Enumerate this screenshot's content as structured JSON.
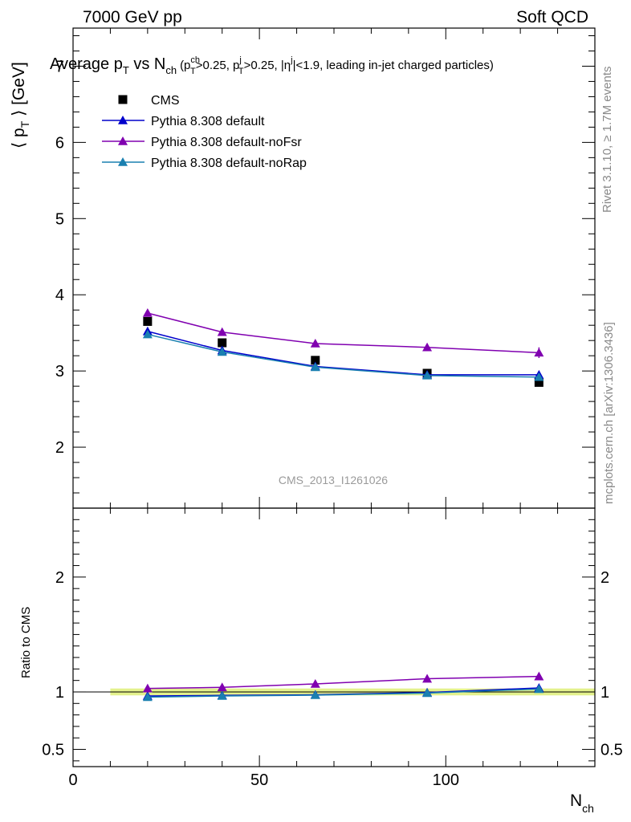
{
  "header": {
    "left": "7000 GeV pp",
    "right": "Soft QCD"
  },
  "title": {
    "main_a": "Average p",
    "main_sub": "T",
    "main_b": " vs N",
    "main_sub2": "ch",
    "cut": "(p",
    "cut_sup": "ch",
    "cut_sub": "T",
    "cut_b": ">0.25, p",
    "cut_sup2": "j",
    "cut_sub2": "T",
    "cut_c": ">0.25, |η",
    "cut_sup3": "j",
    "cut_d": "|<1.9, leading in-jet charged particles)"
  },
  "side_labels": {
    "rivet": "Rivet 3.1.10, ≥ 1.7M events",
    "mcplots": "mcplots.cern.ch [arXiv:1306.3436]"
  },
  "watermark": "CMS_2013_I1261026",
  "axes": {
    "y_main_label_a": "⟨ p",
    "y_main_label_sub": "T",
    "y_main_label_b": " ⟩ [GeV]",
    "y_ratio_label": "Ratio to CMS",
    "x_label": "N",
    "x_label_sub": "ch"
  },
  "legend": [
    {
      "name": "CMS",
      "color": "#000000",
      "marker": "square"
    },
    {
      "name": "Pythia 8.308 default",
      "color": "#0000cc",
      "marker": "triangle"
    },
    {
      "name": "Pythia 8.308 default-noFsr",
      "color": "#8000b0",
      "marker": "triangle"
    },
    {
      "name": "Pythia 8.308 default-noRap",
      "color": "#1a80b0",
      "marker": "triangle"
    }
  ],
  "chart_data": [
    {
      "type": "line",
      "panel": "main",
      "xlim": [
        0,
        140
      ],
      "ylim": [
        1.2,
        7.5
      ],
      "y_ticks": [
        2,
        3,
        4,
        5,
        6,
        7
      ],
      "x": [
        20,
        40,
        65,
        95,
        125
      ],
      "series": [
        {
          "name": "CMS",
          "values": [
            3.65,
            3.37,
            3.14,
            2.97,
            2.85
          ],
          "color": "#000000",
          "style": "points"
        },
        {
          "name": "Pythia 8.308 default",
          "values": [
            3.52,
            3.27,
            3.06,
            2.95,
            2.95
          ],
          "color": "#0000cc",
          "style": "line"
        },
        {
          "name": "Pythia 8.308 default-noFsr",
          "values": [
            3.76,
            3.51,
            3.36,
            3.31,
            3.24
          ],
          "color": "#8000b0",
          "style": "line"
        },
        {
          "name": "Pythia 8.308 default-noRap",
          "values": [
            3.48,
            3.25,
            3.05,
            2.94,
            2.92
          ],
          "color": "#1a80b0",
          "style": "line"
        }
      ]
    },
    {
      "type": "line",
      "panel": "ratio",
      "xlim": [
        0,
        140
      ],
      "ylim": [
        0.35,
        2.6
      ],
      "y_ticks": [
        0.5,
        1,
        2
      ],
      "x_ticks": [
        0,
        50,
        100
      ],
      "x": [
        20,
        40,
        65,
        95,
        125
      ],
      "band": {
        "x_range": [
          10,
          140
        ],
        "y_range": [
          0.97,
          1.03
        ],
        "color": "#e0f080"
      },
      "series": [
        {
          "name": "Pythia 8.308 default",
          "values": [
            0.965,
            0.97,
            0.975,
            0.995,
            1.035
          ],
          "color": "#0000cc"
        },
        {
          "name": "Pythia 8.308 default-noFsr",
          "values": [
            1.03,
            1.04,
            1.07,
            1.115,
            1.135
          ],
          "color": "#8000b0"
        },
        {
          "name": "Pythia 8.308 default-noRap",
          "values": [
            0.955,
            0.965,
            0.972,
            0.99,
            1.025
          ],
          "color": "#1a80b0"
        }
      ]
    }
  ]
}
